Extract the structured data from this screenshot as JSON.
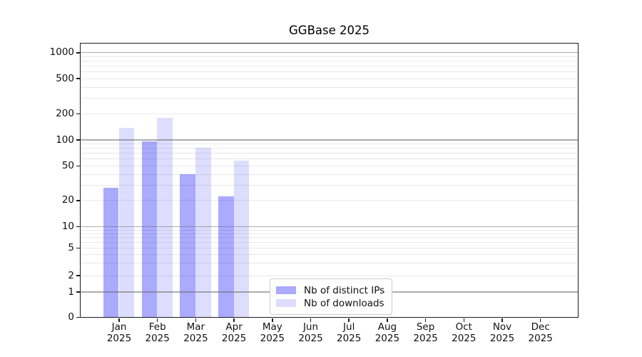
{
  "chart_data": {
    "type": "bar",
    "title": "GGBase 2025",
    "categories": [
      "Jan",
      "Feb",
      "Mar",
      "Apr",
      "May",
      "Jun",
      "Jul",
      "Aug",
      "Sep",
      "Oct",
      "Nov",
      "Dec"
    ],
    "category_year": "2025",
    "series": [
      {
        "name": "Nb of distinct IPs",
        "color": "#aaaaff",
        "values": [
          28,
          95,
          40,
          22,
          0,
          0,
          0,
          0,
          0,
          0,
          0,
          0
        ]
      },
      {
        "name": "Nb of downloads",
        "color": "#ddddff",
        "values": [
          137,
          180,
          80,
          57,
          0,
          0,
          0,
          0,
          0,
          0,
          0,
          0
        ]
      }
    ],
    "yscale": "symlog",
    "yticks": [
      0,
      1,
      2,
      5,
      10,
      20,
      50,
      100,
      200,
      500,
      1000
    ],
    "ylim": [
      0,
      1100
    ],
    "xlabel": "",
    "ylabel": "",
    "grid": {
      "on": true,
      "major_color": "#b0b0b0",
      "minor_color": "#e9e9e9"
    },
    "legend": {
      "position": "lower center"
    },
    "axis_color": "#1c1c1c",
    "background": "#ffffff"
  }
}
